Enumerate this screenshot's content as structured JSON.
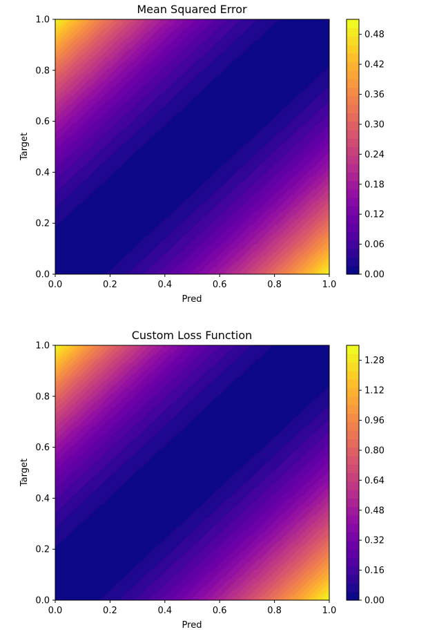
{
  "chart_data": [
    {
      "type": "heatmap",
      "title": "Mean Squared Error",
      "xlabel": "Pred",
      "ylabel": "Target",
      "xlim": [
        0,
        1
      ],
      "ylim": [
        0,
        1
      ],
      "x_ticks": [
        "0.0",
        "0.2",
        "0.4",
        "0.6",
        "0.8",
        "1.0"
      ],
      "y_ticks": [
        "0.0",
        "0.2",
        "0.4",
        "0.6",
        "0.8",
        "1.0"
      ],
      "function": "0.5*(pred-target)^2",
      "colormap": "plasma",
      "levels": 30,
      "colorbar": {
        "min": 0,
        "max": 0.51,
        "ticks": [
          0.0,
          0.06,
          0.12,
          0.18,
          0.24,
          0.3,
          0.36,
          0.42,
          0.48
        ],
        "tick_labels": [
          "0.00",
          "0.06",
          "0.12",
          "0.18",
          "0.24",
          "0.30",
          "0.36",
          "0.42",
          "0.48"
        ]
      },
      "grid": false
    },
    {
      "type": "heatmap",
      "title": "Custom Loss Function",
      "xlabel": "Pred",
      "ylabel": "Target",
      "xlim": [
        0,
        1
      ],
      "ylim": [
        0,
        1
      ],
      "x_ticks": [
        "0.0",
        "0.2",
        "0.4",
        "0.6",
        "0.8",
        "1.0"
      ],
      "y_ticks": [
        "0.0",
        "0.2",
        "0.4",
        "0.6",
        "0.8",
        "1.0"
      ],
      "function": "custom asymmetric loss; peak ≈1.35 at corners (pred=1,target=0) and (pred=0,target=1)",
      "colormap": "plasma",
      "levels": 30,
      "colorbar": {
        "min": 0,
        "max": 1.36,
        "ticks": [
          0.0,
          0.16,
          0.32,
          0.48,
          0.64,
          0.8,
          0.96,
          1.12,
          1.28
        ],
        "tick_labels": [
          "0.00",
          "0.16",
          "0.32",
          "0.48",
          "0.64",
          "0.80",
          "0.96",
          "1.12",
          "1.28"
        ]
      },
      "grid": false
    }
  ],
  "colors": {
    "plasma_low": "#0d0887",
    "plasma_high": "#f0f921"
  }
}
